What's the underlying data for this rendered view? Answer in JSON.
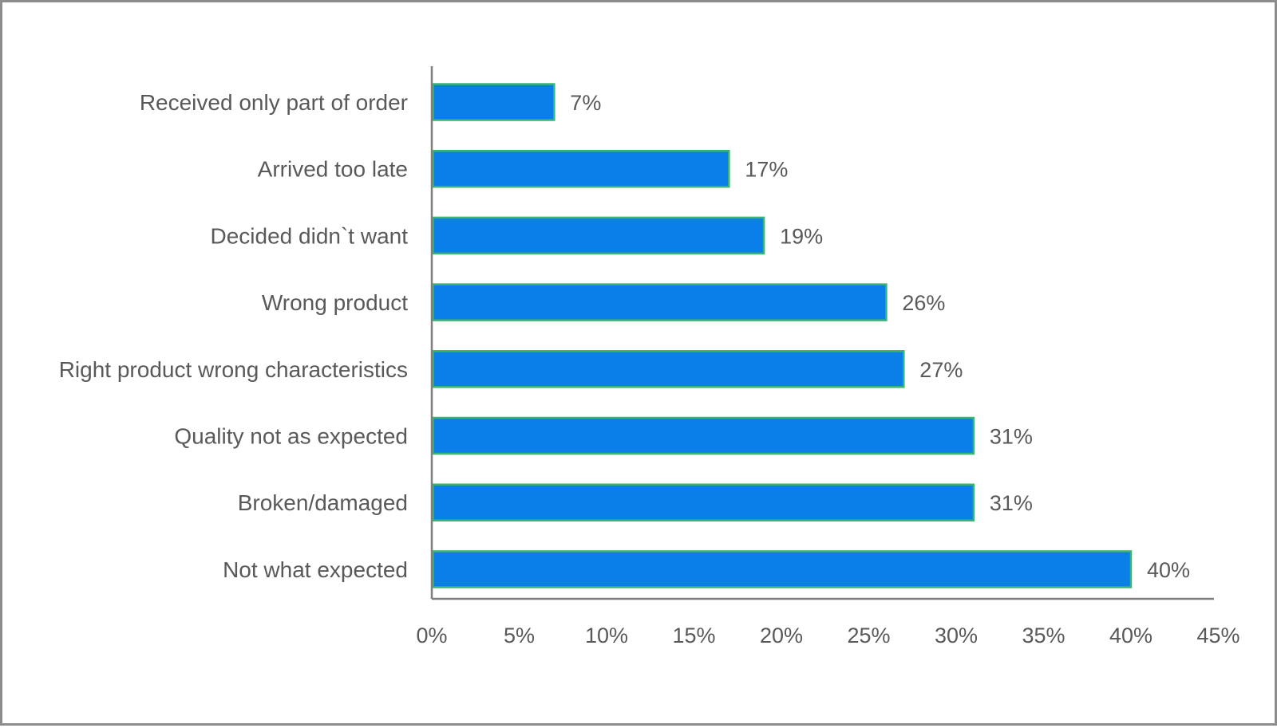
{
  "chart_data": {
    "type": "bar",
    "orientation": "horizontal",
    "categories": [
      "Received only part of order",
      "Arrived too late",
      "Decided didn`t want",
      "Wrong product",
      "Right product wrong characteristics",
      "Quality not as expected",
      "Broken/damaged",
      "Not what expected"
    ],
    "values": [
      7,
      17,
      19,
      26,
      27,
      31,
      31,
      40
    ],
    "value_labels": [
      "7%",
      "17%",
      "19%",
      "26%",
      "27%",
      "31%",
      "31%",
      "40%"
    ],
    "x_ticks": [
      0,
      5,
      10,
      15,
      20,
      25,
      30,
      35,
      40,
      45
    ],
    "x_tick_labels": [
      "0%",
      "5%",
      "10%",
      "15%",
      "20%",
      "25%",
      "30%",
      "35%",
      "40%",
      "45%"
    ],
    "xlim": [
      0,
      45
    ],
    "grid": false,
    "legend": "none",
    "colors": {
      "bar_fill": "#0a7fe8",
      "bar_stroke": "#3cb371",
      "axis": "#7f7f7f",
      "text": "#595959",
      "frame": "#8c8c8c"
    }
  }
}
